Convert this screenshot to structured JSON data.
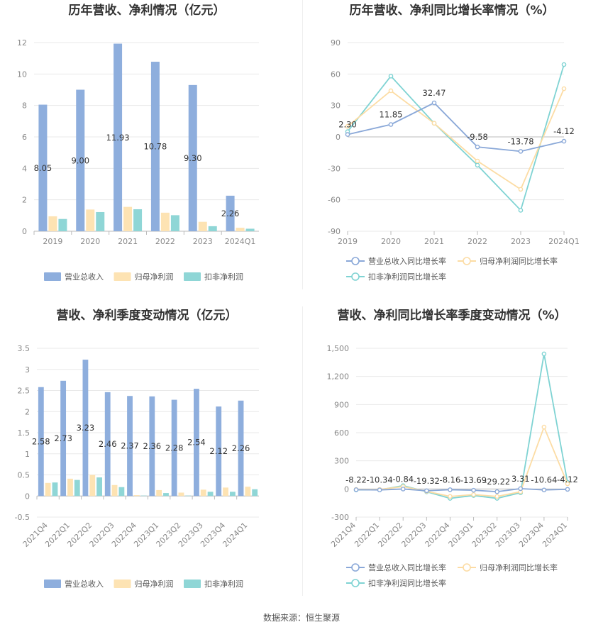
{
  "charts": [
    {
      "type": "bar",
      "title": "历年营收、净利情况（亿元）",
      "categories": [
        "2019",
        "2020",
        "2021",
        "2022",
        "2023",
        "2024Q1"
      ],
      "ylim": [
        0,
        12
      ],
      "yticks": [
        "0",
        "2",
        "4",
        "6",
        "8",
        "10",
        "12"
      ],
      "series": [
        {
          "name": "营业总收入",
          "values": [
            8.05,
            9.0,
            11.93,
            10.78,
            9.3,
            2.26
          ],
          "labels": [
            "8.05",
            "9.00",
            "11.93",
            "10.78",
            "9.30",
            "2.26"
          ]
        },
        {
          "name": "归母净利润",
          "values": [
            0.95,
            1.38,
            1.55,
            1.18,
            0.6,
            0.22
          ]
        },
        {
          "name": "扣非净利润",
          "values": [
            0.78,
            1.22,
            1.4,
            1.02,
            0.32,
            0.16
          ]
        }
      ],
      "legend_position": "bottom"
    },
    {
      "type": "line",
      "title": "历年营收、净利同比增长率情况（%）",
      "categories": [
        "2019",
        "2020",
        "2021",
        "2022",
        "2023",
        "2024Q1"
      ],
      "ylim": [
        -90,
        90
      ],
      "yticks": [
        "-90",
        "-60",
        "-30",
        "0",
        "30",
        "60",
        "90"
      ],
      "series": [
        {
          "name": "营业总收入同比增长率",
          "values": [
            2.3,
            11.85,
            32.47,
            -9.58,
            -13.78,
            -4.12
          ],
          "labels": [
            "2.30",
            "11.85",
            "32.47",
            "-9.58",
            "-13.78",
            "-4.12"
          ]
        },
        {
          "name": "归母净利润同比增长率",
          "values": [
            10,
            44,
            13,
            -23,
            -50,
            46
          ]
        },
        {
          "name": "扣非净利润同比增长率",
          "values": [
            5,
            58,
            13,
            -27,
            -70,
            69
          ]
        }
      ],
      "legend_position": "bottom"
    },
    {
      "type": "bar",
      "title": "营收、净利季度变动情况（亿元）",
      "categories": [
        "2021Q4",
        "2022Q1",
        "2022Q2",
        "2022Q3",
        "2022Q4",
        "2023Q1",
        "2023Q2",
        "2023Q3",
        "2023Q4",
        "2024Q1"
      ],
      "ylim": [
        -0.5,
        3.5
      ],
      "yticks": [
        "-0.5",
        "0",
        "0.5",
        "1",
        "1.5",
        "2",
        "2.5",
        "3",
        "3.5"
      ],
      "series": [
        {
          "name": "营业总收入",
          "values": [
            2.58,
            2.73,
            3.23,
            2.46,
            2.37,
            2.36,
            2.28,
            2.54,
            2.12,
            2.26
          ],
          "labels": [
            "2.58",
            "2.73",
            "3.23",
            "2.46",
            "2.37",
            "2.36",
            "2.28",
            "2.54",
            "2.12",
            "2.26"
          ]
        },
        {
          "name": "归母净利润",
          "values": [
            0.31,
            0.41,
            0.5,
            0.26,
            0.02,
            0.14,
            0.08,
            0.15,
            0.2,
            0.22
          ]
        },
        {
          "name": "扣非净利润",
          "values": [
            0.32,
            0.38,
            0.44,
            0.21,
            0.01,
            0.07,
            0.01,
            0.1,
            0.1,
            0.16
          ]
        }
      ],
      "legend_position": "bottom"
    },
    {
      "type": "line",
      "title": "营收、净利同比增长率季度变动情况（%）",
      "categories": [
        "2021Q4",
        "2022Q1",
        "2022Q2",
        "2022Q3",
        "2022Q4",
        "2023Q1",
        "2023Q2",
        "2023Q3",
        "2023Q4",
        "2024Q1"
      ],
      "ylim": [
        -300,
        1500
      ],
      "yticks": [
        "-300",
        "0",
        "300",
        "600",
        "900",
        "1,200",
        "1,500"
      ],
      "series": [
        {
          "name": "营业总收入同比增长率",
          "values": [
            -8.22,
            -10.34,
            -0.84,
            -19.32,
            -8.16,
            -13.69,
            -29.22,
            3.31,
            -10.64,
            -4.12
          ],
          "labels": [
            "-8.22",
            "-10.34",
            "-0.84",
            "-19.32",
            "-8.16",
            "-13.69",
            "-29.22",
            "3.31",
            "-10.64",
            "-4.12"
          ]
        },
        {
          "name": "归母净利润同比增长率",
          "values": [
            -5,
            -5,
            25,
            -25,
            -80,
            -60,
            -80,
            -30,
            660,
            55
          ]
        },
        {
          "name": "扣非净利润同比增长率",
          "values": [
            -10,
            -10,
            35,
            -30,
            -100,
            -70,
            -100,
            -40,
            1440,
            70
          ]
        }
      ],
      "legend_position": "bottom"
    }
  ],
  "colors": [
    "#8eaedd",
    "#fde3b3",
    "#8fd6d6"
  ],
  "line_colors": [
    "#8aa8d8",
    "#fcdca4",
    "#7fd3d3"
  ],
  "source": "数据来源：恒生聚源"
}
